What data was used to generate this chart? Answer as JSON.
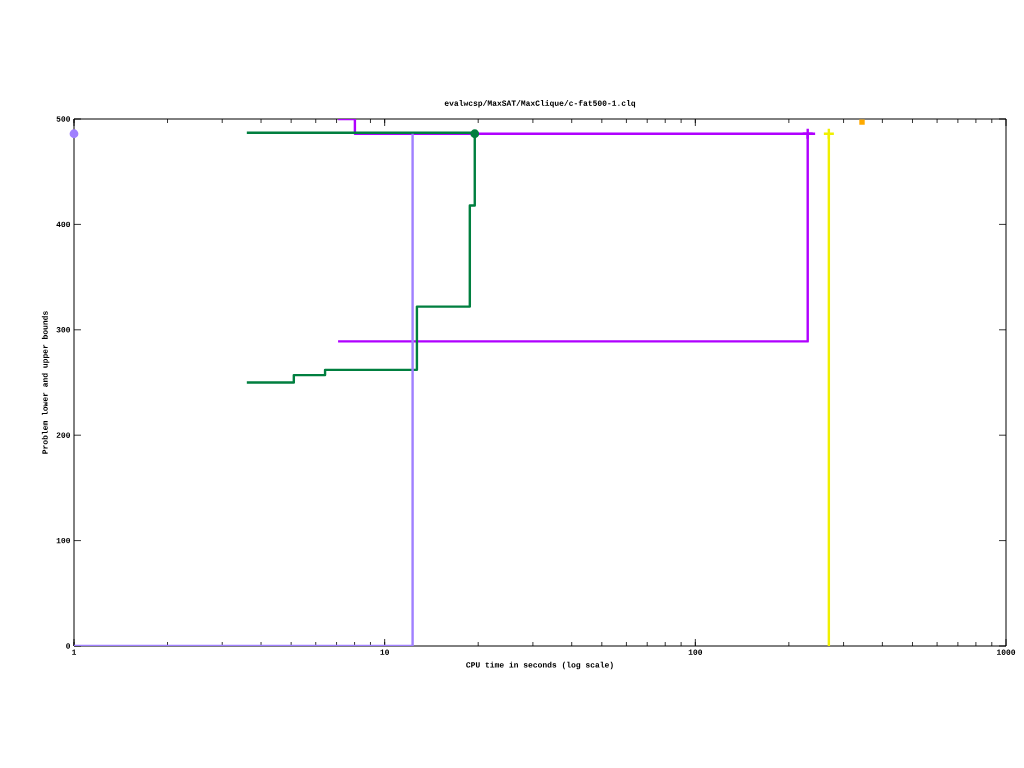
{
  "chart_data": {
    "type": "line",
    "title": "evalwcsp/MaxSAT/MaxClique/c-fat500-1.clq",
    "xlabel": "CPU time in seconds (log scale)",
    "ylabel": "Problem lower and upper bounds",
    "log": "x",
    "xlim": [
      1,
      1000
    ],
    "xticks": [
      1,
      10,
      100,
      1000
    ],
    "ylim": [
      0,
      500
    ],
    "yticks": [
      0,
      100,
      200,
      300,
      400,
      500
    ],
    "series": [
      {
        "color": "#b000ff",
        "x": [
          7.08,
          8.02,
          8.02,
          243,
          null,
          7.08,
          230,
          230
        ],
        "values": [
          500,
          500,
          486,
          486,
          null,
          289,
          289,
          486
        ]
      },
      {
        "color": "#f0f000",
        "x": [
          269,
          269
        ],
        "values": [
          0,
          486
        ]
      },
      {
        "color": "#007f3f",
        "x": [
          3.6,
          19.5,
          null,
          3.6,
          5.1,
          5.1,
          6.43,
          6.43,
          12.7,
          12.7,
          18.8,
          18.8,
          19.5,
          19.5
        ],
        "values": [
          487,
          487,
          null,
          250,
          250,
          257,
          257,
          262,
          262,
          322,
          322,
          418,
          418,
          486
        ]
      },
      {
        "color": "#a080ff",
        "x": [
          1,
          12.3,
          12.3
        ],
        "values": [
          0,
          0,
          486
        ]
      },
      {
        "type": "scatter",
        "marker": "cross",
        "color": "#b000ff",
        "x": [
          230
        ],
        "values": [
          486
        ]
      },
      {
        "type": "scatter",
        "marker": "cross",
        "color": "#f0f000",
        "x": [
          269
        ],
        "values": [
          486
        ]
      },
      {
        "type": "scatter",
        "marker": "square",
        "color": "#ffaa00",
        "x": [
          344
        ],
        "values": [
          497
        ]
      },
      {
        "type": "scatter",
        "marker": "circle",
        "color": "#007f3f",
        "x": [
          19.5
        ],
        "values": [
          486
        ]
      },
      {
        "type": "scatter",
        "marker": "circle",
        "color": "#a080ff",
        "x": [
          1
        ],
        "values": [
          486
        ]
      }
    ]
  }
}
